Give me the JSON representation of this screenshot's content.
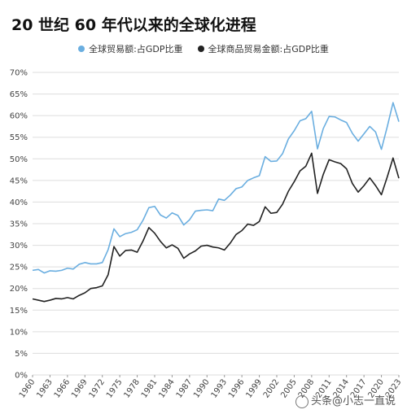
{
  "title": "20 世纪 60 年代以来的全球化进程",
  "watermark": "头条@小志一直说",
  "colors": {
    "trade": "#6aaee0",
    "goods": "#222222",
    "grid": "#dddddd"
  },
  "chart_data": {
    "type": "line",
    "title": "20 世纪 60 年代以来的全球化进程",
    "xlabel": "",
    "ylabel": "",
    "ylim": [
      0,
      70
    ],
    "y_ticks": [
      0,
      5,
      10,
      15,
      20,
      25,
      30,
      35,
      40,
      45,
      50,
      55,
      60,
      65,
      70
    ],
    "y_tick_labels": [
      "0%",
      "5%",
      "10%",
      "15%",
      "20%",
      "25%",
      "30%",
      "35%",
      "40%",
      "45%",
      "50%",
      "55%",
      "60%",
      "65%",
      "70%"
    ],
    "xlim": [
      1960,
      2023
    ],
    "x_tick_labels": [
      "1960",
      "1963",
      "1966",
      "1969",
      "1972",
      "1975",
      "1978",
      "1981",
      "1984",
      "1987",
      "1990",
      "1993",
      "1996",
      "1999",
      "2002",
      "2005",
      "2008",
      "2011",
      "2014",
      "2017",
      "2020",
      "2023"
    ],
    "grid": true,
    "legend_position": "top-center",
    "x": [
      1960,
      1961,
      1962,
      1963,
      1964,
      1965,
      1966,
      1967,
      1968,
      1969,
      1970,
      1971,
      1972,
      1973,
      1974,
      1975,
      1976,
      1977,
      1978,
      1979,
      1980,
      1981,
      1982,
      1983,
      1984,
      1985,
      1986,
      1987,
      1988,
      1989,
      1990,
      1991,
      1992,
      1993,
      1994,
      1995,
      1996,
      1997,
      1998,
      1999,
      2000,
      2001,
      2002,
      2003,
      2004,
      2005,
      2006,
      2007,
      2008,
      2009,
      2010,
      2011,
      2012,
      2013,
      2014,
      2015,
      2016,
      2017,
      2018,
      2019,
      2020,
      2021,
      2022,
      2023
    ],
    "series": [
      {
        "name": "全球贸易额:占GDP比重",
        "color": "#6aaee0",
        "values": [
          24.2,
          24.4,
          23.6,
          24.1,
          24.0,
          24.2,
          24.7,
          24.5,
          25.6,
          26.0,
          25.7,
          25.7,
          26.0,
          29.0,
          33.8,
          32.0,
          32.7,
          33.0,
          33.6,
          35.8,
          38.7,
          39.0,
          37.0,
          36.3,
          37.5,
          36.9,
          34.7,
          35.9,
          37.9,
          38.1,
          38.2,
          38.0,
          40.7,
          40.4,
          41.6,
          43.1,
          43.5,
          45.0,
          45.6,
          46.1,
          50.5,
          49.4,
          49.5,
          51.2,
          54.6,
          56.5,
          58.8,
          59.3,
          61.0,
          52.3,
          57.0,
          59.8,
          59.7,
          59.0,
          58.4,
          55.9,
          54.1,
          55.8,
          57.5,
          56.2,
          52.2,
          57.4,
          63.0,
          58.6
        ]
      },
      {
        "name": "全球商品贸易金额:占GDP比重",
        "color": "#222222",
        "values": [
          17.6,
          17.3,
          17.0,
          17.3,
          17.7,
          17.6,
          17.9,
          17.6,
          18.4,
          19.0,
          20.0,
          20.2,
          20.6,
          23.2,
          29.7,
          27.5,
          28.8,
          28.9,
          28.4,
          31.0,
          34.1,
          32.8,
          30.9,
          29.4,
          30.1,
          29.3,
          27.0,
          28.0,
          28.7,
          29.8,
          30.0,
          29.6,
          29.4,
          28.9,
          30.5,
          32.5,
          33.4,
          34.9,
          34.6,
          35.5,
          38.9,
          37.4,
          37.6,
          39.5,
          42.5,
          44.7,
          47.2,
          48.3,
          51.3,
          42.0,
          46.4,
          49.8,
          49.3,
          48.9,
          47.7,
          44.3,
          42.3,
          43.8,
          45.6,
          43.8,
          41.7,
          45.8,
          50.2,
          45.5
        ]
      }
    ]
  }
}
